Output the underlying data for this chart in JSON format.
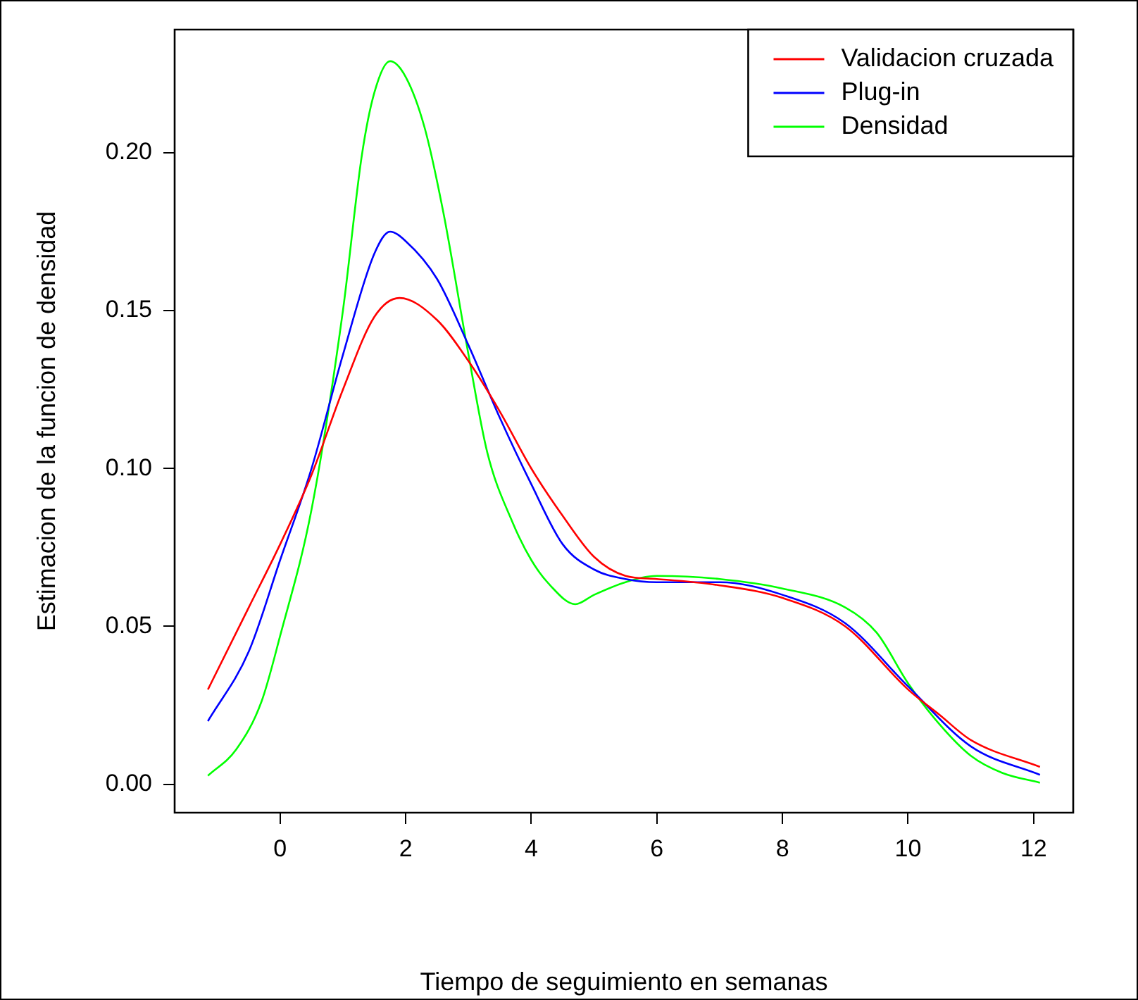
{
  "chart_data": {
    "type": "line",
    "xlabel": "Tiempo de seguimiento en semanas",
    "ylabel": "Estimacion de la funcion de densidad",
    "xlim": [
      -1.68,
      12.63
    ],
    "ylim": [
      -0.009,
      0.239
    ],
    "xticks": [
      0,
      2,
      4,
      6,
      8,
      10,
      12
    ],
    "yticks": [
      {
        "value": 0,
        "label": "0.00"
      },
      {
        "value": 0.05,
        "label": "0.05"
      },
      {
        "value": 0.1,
        "label": "0.10"
      },
      {
        "value": 0.15,
        "label": "0.15"
      },
      {
        "value": 0.2,
        "label": "0.20"
      }
    ],
    "grid": false,
    "legend": "top right",
    "marker": "none",
    "line_style": "solid",
    "series": [
      {
        "name": "Validacion cruzada",
        "color": "#ff0000",
        "x": [
          -1.15,
          -0.5,
          0,
          0.5,
          1,
          1.5,
          1.9,
          2.5,
          3,
          3.5,
          4,
          4.5,
          5,
          5.5,
          6,
          7,
          8,
          9,
          10,
          10.5,
          11,
          12.1
        ],
        "values": [
          0.03,
          0.056,
          0.076,
          0.098,
          0.125,
          0.148,
          0.154,
          0.147,
          0.134,
          0.118,
          0.1,
          0.085,
          0.072,
          0.066,
          0.065,
          0.063,
          0.059,
          0.05,
          0.03,
          0.022,
          0.014,
          0.0055
        ]
      },
      {
        "name": "Plug-in",
        "color": "#0000ff",
        "x": [
          -1.15,
          -0.5,
          0,
          0.5,
          1,
          1.5,
          1.75,
          2,
          2.5,
          3,
          3.5,
          4,
          4.5,
          5,
          5.5,
          6,
          7,
          8,
          9,
          10,
          11,
          12.1
        ],
        "values": [
          0.02,
          0.042,
          0.071,
          0.1,
          0.136,
          0.168,
          0.175,
          0.172,
          0.16,
          0.139,
          0.116,
          0.095,
          0.076,
          0.068,
          0.065,
          0.064,
          0.064,
          0.06,
          0.051,
          0.031,
          0.012,
          0.003
        ]
      },
      {
        "name": "Densidad",
        "color": "#00ff00",
        "x": [
          -1.15,
          -0.7,
          -0.3,
          0,
          0.5,
          1,
          1.3,
          1.5,
          1.75,
          2,
          2.3,
          2.6,
          3,
          3.3,
          3.7,
          4,
          4.3,
          4.7,
          5,
          5.5,
          6,
          7,
          8,
          9,
          9.5,
          10,
          10.5,
          11,
          11.5,
          12.1
        ],
        "values": [
          0.0027,
          0.011,
          0.026,
          0.047,
          0.087,
          0.15,
          0.199,
          0.219,
          0.229,
          0.224,
          0.208,
          0.181,
          0.136,
          0.105,
          0.083,
          0.071,
          0.063,
          0.057,
          0.06,
          0.064,
          0.066,
          0.065,
          0.062,
          0.056,
          0.048,
          0.032,
          0.019,
          0.009,
          0.0036,
          0.0005
        ]
      }
    ]
  }
}
